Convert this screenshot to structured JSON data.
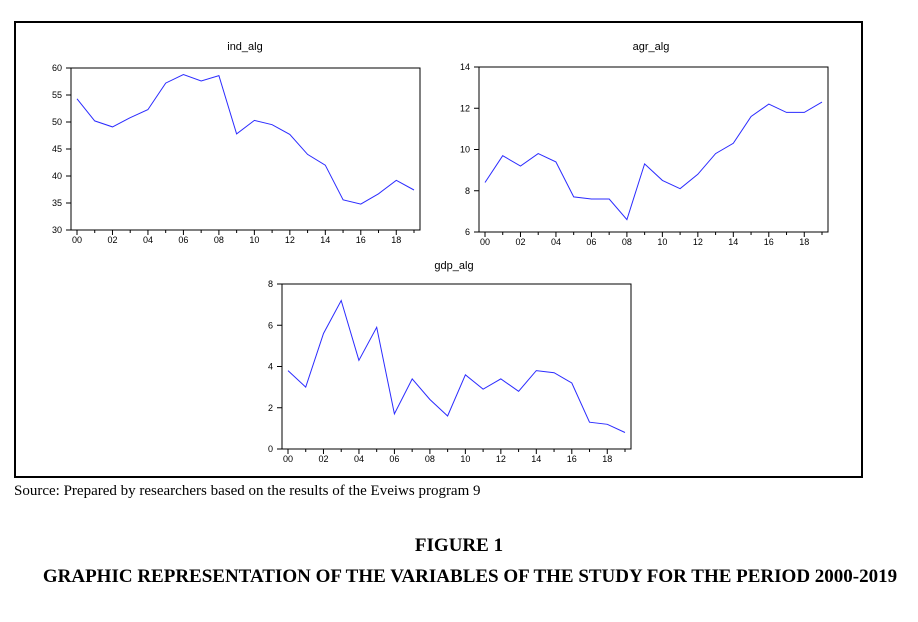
{
  "chart_data": [
    {
      "type": "line",
      "title": "ind_alg",
      "x": [
        2000,
        2001,
        2002,
        2003,
        2004,
        2005,
        2006,
        2007,
        2008,
        2009,
        2010,
        2011,
        2012,
        2013,
        2014,
        2015,
        2016,
        2017,
        2018,
        2019
      ],
      "series": [
        {
          "values": [
            54.3,
            50.2,
            49.1,
            50.8,
            52.3,
            57.2,
            58.8,
            57.6,
            58.6,
            47.8,
            50.3,
            49.5,
            47.7,
            44.0,
            42.0,
            35.6,
            34.8,
            36.7,
            39.2,
            37.4
          ]
        }
      ],
      "xticks": [
        "00",
        "02",
        "04",
        "06",
        "08",
        "10",
        "12",
        "14",
        "16",
        "18"
      ],
      "yticks": [
        "30",
        "35",
        "40",
        "45",
        "50",
        "55",
        "60"
      ],
      "xlim": [
        2000,
        2019
      ],
      "ylim": [
        30,
        60
      ],
      "line_color": "#2b2bff",
      "grid": false
    },
    {
      "type": "line",
      "title": "agr_alg",
      "x": [
        2000,
        2001,
        2002,
        2003,
        2004,
        2005,
        2006,
        2007,
        2008,
        2009,
        2010,
        2011,
        2012,
        2013,
        2014,
        2015,
        2016,
        2017,
        2018,
        2019
      ],
      "series": [
        {
          "values": [
            8.4,
            9.7,
            9.2,
            9.8,
            9.4,
            7.7,
            7.6,
            7.6,
            6.6,
            9.3,
            8.5,
            8.1,
            8.8,
            9.8,
            10.3,
            11.6,
            12.2,
            11.8,
            11.8,
            12.3
          ]
        }
      ],
      "xticks": [
        "00",
        "02",
        "04",
        "06",
        "08",
        "10",
        "12",
        "14",
        "16",
        "18"
      ],
      "yticks": [
        "6",
        "8",
        "10",
        "12",
        "14"
      ],
      "xlim": [
        2000,
        2019
      ],
      "ylim": [
        6,
        14
      ],
      "line_color": "#2b2bff",
      "grid": false
    },
    {
      "type": "line",
      "title": "gdp_alg",
      "x": [
        2000,
        2001,
        2002,
        2003,
        2004,
        2005,
        2006,
        2007,
        2008,
        2009,
        2010,
        2011,
        2012,
        2013,
        2014,
        2015,
        2016,
        2017,
        2018,
        2019
      ],
      "series": [
        {
          "values": [
            3.8,
            3.0,
            5.6,
            7.2,
            4.3,
            5.9,
            1.7,
            3.4,
            2.4,
            1.6,
            3.6,
            2.9,
            3.4,
            2.8,
            3.8,
            3.7,
            3.2,
            1.3,
            1.2,
            0.8
          ]
        }
      ],
      "xticks": [
        "00",
        "02",
        "04",
        "06",
        "08",
        "10",
        "12",
        "14",
        "16",
        "18"
      ],
      "yticks": [
        "0",
        "2",
        "4",
        "6",
        "8"
      ],
      "xlim": [
        2000,
        2019
      ],
      "ylim": [
        0,
        8
      ],
      "line_color": "#2b2bff",
      "grid": false
    }
  ],
  "source_text": "Source: Prepared by researchers based on the results of the Eveiws program 9",
  "figure_label": "FIGURE 1",
  "figure_caption": "GRAPHIC REPRESENTATION OF THE VARIABLES OF THE STUDY FOR THE PERIOD 2000-2019"
}
